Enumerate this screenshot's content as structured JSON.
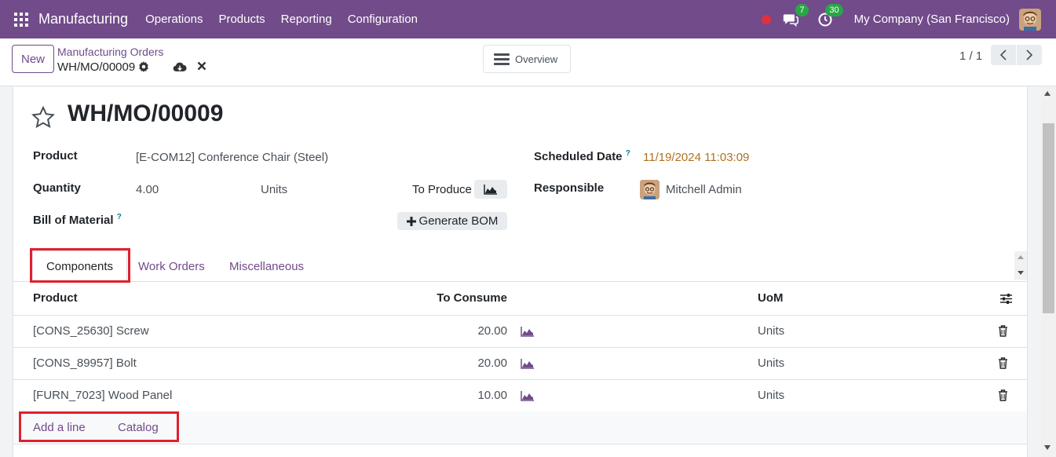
{
  "navbar": {
    "brand": "Manufacturing",
    "menu": [
      "Operations",
      "Products",
      "Reporting",
      "Configuration"
    ],
    "messages_count": "7",
    "activities_count": "30",
    "company": "My Company (San Francisco)"
  },
  "control": {
    "new_label": "New",
    "breadcrumb_parent": "Manufacturing Orders",
    "breadcrumb_current": "WH/MO/00009",
    "overview_label": "Overview",
    "pager": "1 / 1"
  },
  "form": {
    "title": "WH/MO/00009",
    "product_label": "Product",
    "product_value": "[E-COM12] Conference Chair (Steel)",
    "quantity_label": "Quantity",
    "quantity_value": "4.00",
    "quantity_uom": "Units",
    "to_produce_label": "To Produce",
    "bom_label": "Bill of Material",
    "help_mark": "?",
    "generate_bom_label": "Generate BOM",
    "scheduled_date_label": "Scheduled Date",
    "scheduled_date_value": "11/19/2024 11:03:09",
    "responsible_label": "Responsible",
    "responsible_value": "Mitchell Admin"
  },
  "tabs": [
    "Components",
    "Work Orders",
    "Miscellaneous"
  ],
  "table": {
    "headers": {
      "product": "Product",
      "to_consume": "To Consume",
      "uom": "UoM"
    },
    "rows": [
      {
        "product": "[CONS_25630] Screw",
        "to_consume": "20.00",
        "uom": "Units"
      },
      {
        "product": "[CONS_89957] Bolt",
        "to_consume": "20.00",
        "uom": "Units"
      },
      {
        "product": "[FURN_7023] Wood Panel",
        "to_consume": "10.00",
        "uom": "Units"
      }
    ],
    "add_line_label": "Add a line",
    "catalog_label": "Catalog"
  },
  "colors": {
    "brand_purple": "#714b8a",
    "highlight_red": "#e0202e",
    "date_orange": "#b0701f"
  }
}
